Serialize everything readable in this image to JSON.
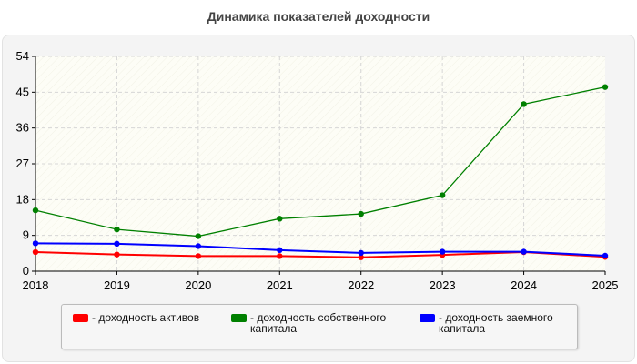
{
  "chart_data": {
    "type": "line",
    "title": "Динамика показателей доходности",
    "x": [
      "2018",
      "2019",
      "2020",
      "2021",
      "2022",
      "2023",
      "2024",
      "2025"
    ],
    "y_ticks": [
      "0",
      "9",
      "18",
      "27",
      "36",
      "45",
      "54"
    ],
    "ylim": [
      0,
      54
    ],
    "grid": true,
    "legend_position": "bottom",
    "series": [
      {
        "name": "- доходность активов",
        "color": "#ff0000",
        "values": [
          4.8,
          4.2,
          3.8,
          3.8,
          3.5,
          4.1,
          4.8,
          3.6
        ]
      },
      {
        "name": "- доходность собственного капитала",
        "color": "#008000",
        "values": [
          15.3,
          10.5,
          8.8,
          13.2,
          14.4,
          19.1,
          42.0,
          46.3
        ]
      },
      {
        "name": "- доходность заемного капитала",
        "color": "#0000ff",
        "values": [
          7.0,
          6.9,
          6.3,
          5.3,
          4.6,
          4.9,
          4.9,
          3.9
        ]
      }
    ]
  }
}
